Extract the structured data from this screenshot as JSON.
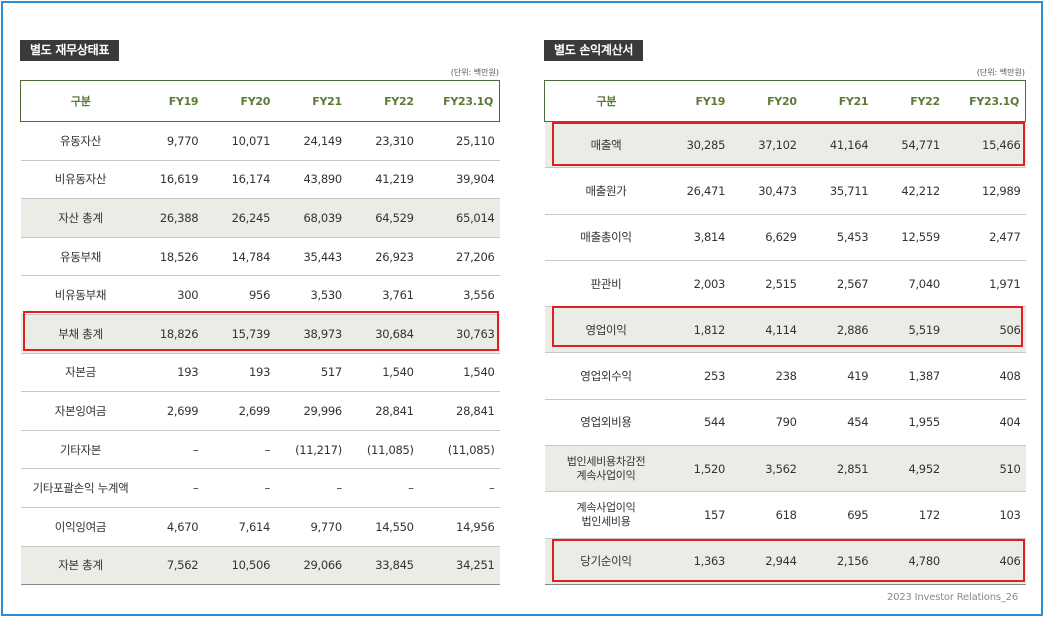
{
  "balance_sheet": {
    "title": "별도 재무상태표",
    "unit": "(단위: 백만원)",
    "columns": [
      "구분",
      "FY19",
      "FY20",
      "FY21",
      "FY22",
      "FY23.1Q"
    ],
    "rows": [
      {
        "label": "유동자산",
        "values": [
          "9,770",
          "10,071",
          "24,149",
          "23,310",
          "25,110"
        ],
        "shaded": false
      },
      {
        "label": "비유동자산",
        "values": [
          "16,619",
          "16,174",
          "43,890",
          "41,219",
          "39,904"
        ],
        "shaded": false
      },
      {
        "label": "자산 총계",
        "values": [
          "26,388",
          "26,245",
          "68,039",
          "64,529",
          "65,014"
        ],
        "shaded": true
      },
      {
        "label": "유동부채",
        "values": [
          "18,526",
          "14,784",
          "35,443",
          "26,923",
          "27,206"
        ],
        "shaded": false
      },
      {
        "label": "비유동부채",
        "values": [
          "300",
          "956",
          "3,530",
          "3,761",
          "3,556"
        ],
        "shaded": false
      },
      {
        "label": "부채 총계",
        "values": [
          "18,826",
          "15,739",
          "38,973",
          "30,684",
          "30,763"
        ],
        "shaded": true
      },
      {
        "label": "자본금",
        "values": [
          "193",
          "193",
          "517",
          "1,540",
          "1,540"
        ],
        "shaded": false
      },
      {
        "label": "자본잉여금",
        "values": [
          "2,699",
          "2,699",
          "29,996",
          "28,841",
          "28,841"
        ],
        "shaded": false
      },
      {
        "label": "기타자본",
        "values": [
          "–",
          "–",
          "(11,217)",
          "(11,085)",
          "(11,085)"
        ],
        "shaded": false
      },
      {
        "label": "기타포괄손익 누계액",
        "values": [
          "–",
          "–",
          "–",
          "–",
          "–"
        ],
        "shaded": false
      },
      {
        "label": "이익잉여금",
        "values": [
          "4,670",
          "7,614",
          "9,770",
          "14,550",
          "14,956"
        ],
        "shaded": false
      },
      {
        "label": "자본 총계",
        "values": [
          "7,562",
          "10,506",
          "29,066",
          "33,845",
          "34,251"
        ],
        "shaded": true
      }
    ]
  },
  "income_statement": {
    "title": "별도 손익계산서",
    "unit": "(단위: 백만원)",
    "columns": [
      "구분",
      "FY19",
      "FY20",
      "FY21",
      "FY22",
      "FY23.1Q"
    ],
    "rows": [
      {
        "label": "매출액",
        "values": [
          "30,285",
          "37,102",
          "41,164",
          "54,771",
          "15,466"
        ],
        "shaded": true
      },
      {
        "label": "매출원가",
        "values": [
          "26,471",
          "30,473",
          "35,711",
          "42,212",
          "12,989"
        ],
        "shaded": false
      },
      {
        "label": "매출총이익",
        "values": [
          "3,814",
          "6,629",
          "5,453",
          "12,559",
          "2,477"
        ],
        "shaded": false
      },
      {
        "label": "판관비",
        "values": [
          "2,003",
          "2,515",
          "2,567",
          "7,040",
          "1,971"
        ],
        "shaded": false
      },
      {
        "label": "영업이익",
        "values": [
          "1,812",
          "4,114",
          "2,886",
          "5,519",
          "506"
        ],
        "shaded": true
      },
      {
        "label": "영업외수익",
        "values": [
          "253",
          "238",
          "419",
          "1,387",
          "408"
        ],
        "shaded": false
      },
      {
        "label": "영업외비용",
        "values": [
          "544",
          "790",
          "454",
          "1,955",
          "404"
        ],
        "shaded": false
      },
      {
        "label": "법인세비용차감전\n계속사업이익",
        "values": [
          "1,520",
          "3,562",
          "2,851",
          "4,952",
          "510"
        ],
        "shaded": true
      },
      {
        "label": "계속사업이익\n법인세비용",
        "values": [
          "157",
          "618",
          "695",
          "172",
          "103"
        ],
        "shaded": false
      },
      {
        "label": "당기순이익",
        "values": [
          "1,363",
          "2,944",
          "2,156",
          "4,780",
          "406"
        ],
        "shaded": true
      }
    ]
  },
  "footer": "2023 Investor Relations_26",
  "colors": {
    "frame_border": "#2b8fd6",
    "header_text": "#5c7a37",
    "shaded_row": "#eaede6",
    "highlight_box": "#e02020",
    "title_bg": "#3a3a3a"
  }
}
